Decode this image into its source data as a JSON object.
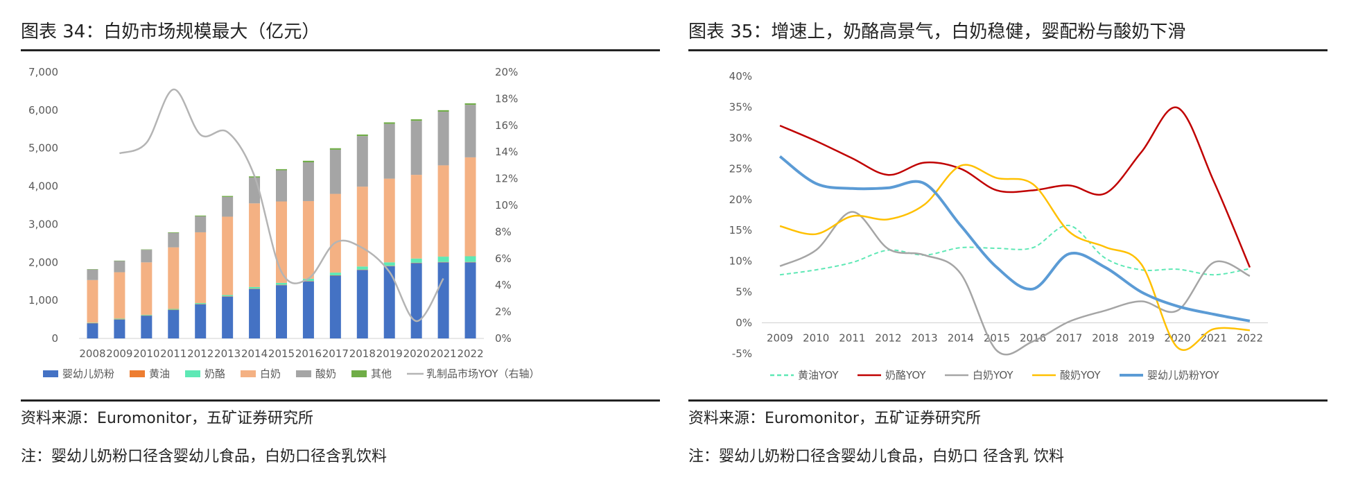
{
  "panels": [
    {
      "title": "图表 34：白奶市场规模最大（亿元）",
      "source": "资料来源：Euromonitor，五矿证券研究所",
      "note": "注：婴幼儿奶粉口径含婴幼儿食品，白奶口径含乳饮料"
    },
    {
      "title": "图表 35：增速上，奶酪高景气，白奶稳健，婴配粉与酸奶下滑",
      "source": "资料来源：Euromonitor，五矿证券研究所",
      "note": "注：婴幼儿奶粉口径含婴幼儿食品，白奶口 径含乳 饮料"
    }
  ],
  "colors": {
    "婴幼儿奶粉": "#4472c4",
    "黄油": "#ed7d31",
    "奶酪": "#5ee8b5",
    "白奶": "#f4b183",
    "酸奶": "#a5a5a5",
    "其他": "#70ad47",
    "乳制品市场YOY": "#b4b4b4",
    "黄油YOY": "#5ee8b5",
    "奶酪YOY": "#c00000",
    "白奶YOY": "#a5a5a5",
    "酸奶YOY": "#ffc000",
    "婴幼儿奶粉YOY": "#5b9bd5"
  },
  "chart_data": [
    {
      "type": "bar",
      "stacked": true,
      "title": "白奶市场规模最大（亿元）",
      "categories": [
        "2008",
        "2009",
        "2010",
        "2011",
        "2012",
        "2013",
        "2014",
        "2015",
        "2016",
        "2017",
        "2018",
        "2019",
        "2020",
        "2021",
        "2022"
      ],
      "ylim": [
        0,
        7000
      ],
      "yticks": [
        "0",
        "1,000",
        "2,000",
        "3,000",
        "4,000",
        "5,000",
        "6,000",
        "7,000"
      ],
      "y2lim": [
        0,
        20
      ],
      "y2ticks": [
        "0%",
        "2%",
        "4%",
        "6%",
        "8%",
        "10%",
        "12%",
        "14%",
        "16%",
        "18%",
        "20%"
      ],
      "series": [
        {
          "name": "婴幼儿奶粉",
          "values": [
            400,
            500,
            600,
            750,
            900,
            1100,
            1300,
            1400,
            1500,
            1650,
            1800,
            1900,
            1980,
            2000,
            2000
          ]
        },
        {
          "name": "黄油",
          "values": [
            5,
            5,
            5,
            5,
            5,
            10,
            10,
            10,
            10,
            10,
            10,
            10,
            10,
            10,
            10
          ]
        },
        {
          "name": "奶酪",
          "values": [
            10,
            15,
            15,
            20,
            25,
            30,
            40,
            50,
            60,
            70,
            80,
            90,
            110,
            140,
            150
          ]
        },
        {
          "name": "白奶",
          "values": [
            1120,
            1220,
            1380,
            1620,
            1860,
            2060,
            2200,
            2140,
            2040,
            2070,
            2100,
            2200,
            2200,
            2400,
            2600
          ]
        },
        {
          "name": "酸奶",
          "values": [
            280,
            300,
            330,
            380,
            420,
            520,
            680,
            820,
            1020,
            1160,
            1330,
            1440,
            1420,
            1410,
            1380
          ]
        },
        {
          "name": "其他",
          "values": [
            5,
            5,
            10,
            15,
            20,
            25,
            30,
            30,
            40,
            40,
            40,
            40,
            40,
            40,
            40
          ]
        }
      ],
      "line": {
        "name": "乳制品市场YOY（右轴）",
        "axis": "right",
        "x": [
          "2009",
          "2010",
          "2011",
          "2012",
          "2013",
          "2014",
          "2015",
          "2016",
          "2017",
          "2018",
          "2019",
          "2020",
          "2021"
        ],
        "values": [
          13.9,
          14.7,
          18.7,
          15.3,
          15.5,
          12.2,
          5.0,
          4.5,
          7.2,
          6.8,
          5.0,
          1.3,
          4.5
        ]
      },
      "legend": [
        "婴幼儿奶粉",
        "黄油",
        "奶酪",
        "白奶",
        "酸奶",
        "其他",
        "乳制品市场YOY（右轴）"
      ],
      "legend_position": "bottom"
    },
    {
      "type": "line",
      "title": "增速上，奶酪高景气，白奶稳健，婴配粉与酸奶下滑",
      "categories": [
        "2009",
        "2010",
        "2011",
        "2012",
        "2013",
        "2014",
        "2015",
        "2016",
        "2017",
        "2018",
        "2019",
        "2020",
        "2021",
        "2022"
      ],
      "ylim": [
        -5,
        40
      ],
      "yticks": [
        "-5%",
        "0%",
        "5%",
        "10%",
        "15%",
        "20%",
        "25%",
        "30%",
        "35%",
        "40%"
      ],
      "series": [
        {
          "name": "黄油YOY",
          "dashed": true,
          "values": [
            7.8,
            8.6,
            9.8,
            11.8,
            11.0,
            12.2,
            12.1,
            12.2,
            15.8,
            10.5,
            8.6,
            8.7,
            7.8,
            8.8
          ]
        },
        {
          "name": "奶酪YOY",
          "values": [
            32.0,
            29.5,
            26.7,
            24.0,
            26.0,
            25.0,
            21.5,
            21.5,
            22.3,
            21.0,
            27.7,
            34.9,
            23.0,
            9.0
          ]
        },
        {
          "name": "白奶YOY",
          "values": [
            9.2,
            11.8,
            18.0,
            12.0,
            11.0,
            8.0,
            -4.5,
            -3.0,
            0.2,
            2.0,
            3.5,
            2.0,
            9.8,
            7.6
          ]
        },
        {
          "name": "酸奶YOY",
          "values": [
            15.7,
            14.4,
            17.3,
            16.8,
            19.2,
            25.5,
            23.5,
            22.5,
            14.8,
            12.3,
            9.5,
            -4.0,
            -1.0,
            -1.2
          ]
        },
        {
          "name": "婴幼儿奶粉YOY",
          "values": [
            27.0,
            22.6,
            21.8,
            21.9,
            22.6,
            15.8,
            9.0,
            5.5,
            11.2,
            9.0,
            5.0,
            2.7,
            1.4,
            0.3
          ]
        }
      ],
      "legend": [
        "黄油YOY",
        "奶酪YOY",
        "白奶YOY",
        "酸奶YOY",
        "婴幼儿奶粉YOY"
      ],
      "legend_position": "bottom"
    }
  ]
}
